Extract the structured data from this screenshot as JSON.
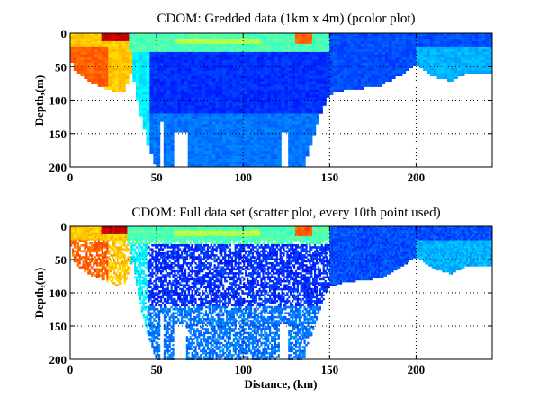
{
  "chart_data": [
    {
      "type": "heatmap",
      "title": "CDOM: Gredded data (1km x 4m) (pcolor plot)",
      "xlabel": "",
      "ylabel": "Depth,(m)",
      "xlim": [
        0,
        244
      ],
      "ylim": [
        200,
        0
      ],
      "xticks": [
        "0",
        "50",
        "100",
        "150",
        "200"
      ],
      "yticks": [
        "0",
        "50",
        "100",
        "150",
        "200"
      ],
      "grid": true,
      "colormap": "jet",
      "style": "pcolor"
    },
    {
      "type": "scatter",
      "title": "CDOM: Full data set (scatter plot, every 10th point used)",
      "xlabel": "Distance, (km)",
      "ylabel": "Depth,(m)",
      "xlim": [
        0,
        244
      ],
      "ylim": [
        200,
        0
      ],
      "xticks": [
        "0",
        "50",
        "100",
        "150",
        "200"
      ],
      "yticks": [
        "0",
        "50",
        "100",
        "150",
        "200"
      ],
      "grid": true,
      "colormap": "jet",
      "style": "scatter"
    }
  ],
  "section": {
    "bottom_profile_km_m": [
      [
        0,
        35
      ],
      [
        3,
        55
      ],
      [
        10,
        70
      ],
      [
        20,
        80
      ],
      [
        27,
        88
      ],
      [
        32,
        85
      ],
      [
        34,
        65
      ],
      [
        36,
        55
      ],
      [
        40,
        110
      ],
      [
        45,
        165
      ],
      [
        50,
        200
      ],
      [
        135,
        200
      ],
      [
        140,
        160
      ],
      [
        145,
        120
      ],
      [
        150,
        90
      ],
      [
        160,
        82
      ],
      [
        170,
        80
      ],
      [
        180,
        76
      ],
      [
        190,
        62
      ],
      [
        200,
        45
      ],
      [
        210,
        62
      ],
      [
        220,
        70
      ],
      [
        230,
        58
      ],
      [
        244,
        58
      ]
    ],
    "gaps": [
      {
        "x": [
          52,
          54
        ],
        "from_depth": 130
      },
      {
        "x": [
          60,
          67
        ],
        "from_depth": 145
      },
      {
        "x": [
          121,
          126
        ],
        "from_depth": 145
      }
    ],
    "zones_relative_cdom": [
      {
        "x": [
          0,
          244
        ],
        "depth": [
          0,
          200
        ],
        "value": 0.27
      },
      {
        "x": [
          33,
          48
        ],
        "depth": [
          0,
          200
        ],
        "value": 0.36
      },
      {
        "x": [
          45,
          150
        ],
        "depth": [
          25,
          120
        ],
        "value": 0.17
      },
      {
        "x": [
          45,
          150
        ],
        "depth": [
          120,
          200
        ],
        "value": 0.24
      },
      {
        "x": [
          150,
          244
        ],
        "depth": [
          0,
          90
        ],
        "value": 0.2
      },
      {
        "x": [
          200,
          244
        ],
        "depth": [
          20,
          70
        ],
        "value": 0.3
      },
      {
        "x": [
          0,
          35
        ],
        "depth": [
          0,
          90
        ],
        "value": 0.68
      },
      {
        "x": [
          0,
          22
        ],
        "depth": [
          20,
          80
        ],
        "value": 0.78
      },
      {
        "x": [
          33,
          150
        ],
        "depth": [
          0,
          25
        ],
        "value": 0.45
      },
      {
        "x": [
          60,
          110
        ],
        "depth": [
          5,
          15
        ],
        "value": 0.55
      },
      {
        "x": [
          130,
          140
        ],
        "depth": [
          0,
          15
        ],
        "value": 0.78
      },
      {
        "x": [
          18,
          33
        ],
        "depth": [
          0,
          12
        ],
        "value": 0.93
      }
    ]
  }
}
